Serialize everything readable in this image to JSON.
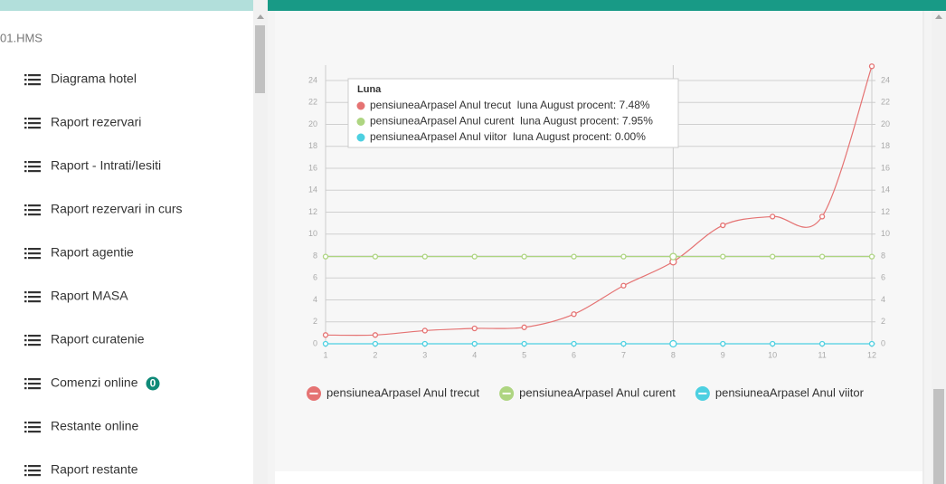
{
  "sidebar": {
    "title": "01.HMS",
    "items": [
      {
        "label": "Diagrama hotel"
      },
      {
        "label": "Raport rezervari"
      },
      {
        "label": "Raport - Intrati/Iesiti"
      },
      {
        "label": "Raport rezervari in curs"
      },
      {
        "label": "Raport agentie"
      },
      {
        "label": "Raport MASA"
      },
      {
        "label": "Raport curatenie"
      },
      {
        "label": "Comenzi online",
        "badge": 0
      },
      {
        "label": "Restante online"
      },
      {
        "label": "Raport restante"
      }
    ]
  },
  "chart_data": {
    "type": "line",
    "x": [
      1,
      2,
      3,
      4,
      5,
      6,
      7,
      8,
      9,
      10,
      11,
      12
    ],
    "xlim": [
      1,
      12
    ],
    "xticks": [
      1,
      2,
      3,
      4,
      5,
      6,
      7,
      8,
      9,
      10,
      11,
      12
    ],
    "ylim": [
      0,
      25.4
    ],
    "yticks": [
      0,
      2,
      4,
      6,
      8,
      10,
      12,
      14,
      16,
      18,
      20,
      22,
      24
    ],
    "y2lim": [
      0,
      25.4
    ],
    "y2ticks": [
      0,
      2,
      4,
      6,
      8,
      10,
      12,
      14,
      16,
      18,
      20,
      22,
      24
    ],
    "grid": true,
    "legend": "bottom",
    "series": [
      {
        "name": "pensiuneaArpasel Anul trecut",
        "color": "#e57373",
        "values": [
          0.8,
          0.8,
          1.2,
          1.4,
          1.5,
          2.7,
          5.3,
          7.48,
          10.8,
          11.6,
          11.6,
          25.3
        ]
      },
      {
        "name": "pensiuneaArpasel Anul curent",
        "color": "#aed581",
        "values": [
          7.95,
          7.95,
          7.95,
          7.95,
          7.95,
          7.95,
          7.95,
          7.95,
          7.95,
          7.95,
          7.95,
          7.95
        ]
      },
      {
        "name": "pensiuneaArpasel Anul viitor",
        "color": "#4dd0e1",
        "values": [
          0,
          0,
          0,
          0,
          0,
          0,
          0,
          0,
          0,
          0,
          0,
          0
        ]
      }
    ],
    "tooltip": {
      "title": "Luna",
      "x": 8,
      "rows": [
        "pensiuneaArpasel Anul trecut  luna August procent: 7.48%",
        "pensiuneaArpasel Anul curent  luna August procent: 7.95%",
        "pensiuneaArpasel Anul viitor  luna August procent: 0.00%"
      ]
    }
  }
}
